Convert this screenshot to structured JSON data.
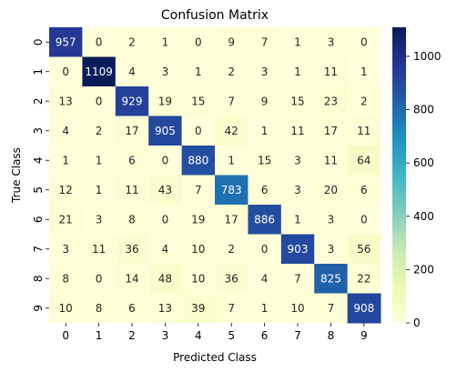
{
  "chart_data": {
    "type": "heatmap",
    "title": "Confusion Matrix",
    "xlabel": "Predicted Class",
    "ylabel": "True Class",
    "x_categories": [
      "0",
      "1",
      "2",
      "3",
      "4",
      "5",
      "6",
      "7",
      "8",
      "9"
    ],
    "y_categories": [
      "0",
      "1",
      "2",
      "3",
      "4",
      "5",
      "6",
      "7",
      "8",
      "9"
    ],
    "values": [
      [
        957,
        0,
        2,
        1,
        0,
        9,
        7,
        1,
        3,
        0
      ],
      [
        0,
        1109,
        4,
        3,
        1,
        2,
        3,
        1,
        11,
        1
      ],
      [
        13,
        0,
        929,
        19,
        15,
        7,
        9,
        15,
        23,
        2
      ],
      [
        4,
        2,
        17,
        905,
        0,
        42,
        1,
        11,
        17,
        11
      ],
      [
        1,
        1,
        6,
        0,
        880,
        1,
        15,
        3,
        11,
        64
      ],
      [
        12,
        1,
        11,
        43,
        7,
        783,
        6,
        3,
        20,
        6
      ],
      [
        21,
        3,
        8,
        0,
        19,
        17,
        886,
        1,
        3,
        0
      ],
      [
        3,
        11,
        36,
        4,
        10,
        2,
        0,
        903,
        3,
        56
      ],
      [
        8,
        0,
        14,
        48,
        10,
        36,
        4,
        7,
        825,
        22
      ],
      [
        10,
        8,
        6,
        13,
        39,
        7,
        1,
        10,
        7,
        908
      ]
    ],
    "colormap": "YlGnBu",
    "color_range": [
      0,
      1109
    ],
    "colorbar_ticks": [
      0,
      200,
      400,
      600,
      800,
      1000
    ],
    "colorbar_tick_labels": [
      "0",
      "200",
      "400",
      "600",
      "800",
      "1000"
    ],
    "annotations": true
  }
}
